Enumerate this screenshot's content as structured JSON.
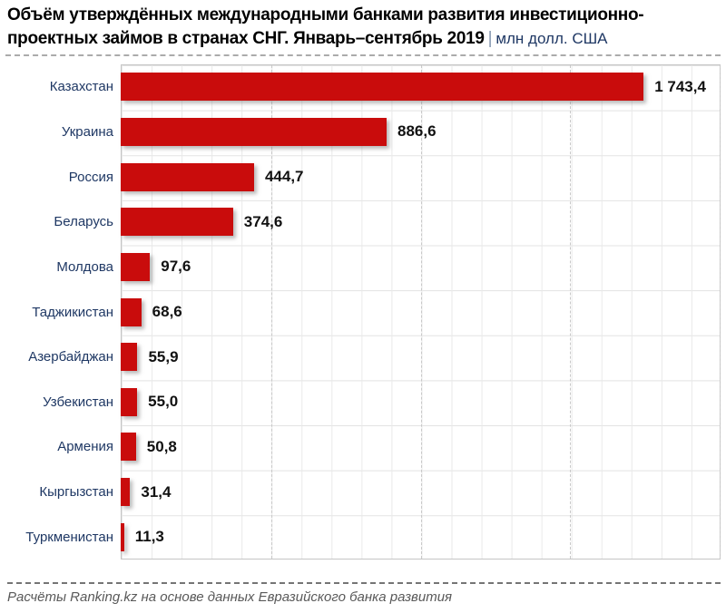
{
  "title": {
    "line1": "Объём утверждённых международными банками развития инвестиционно-",
    "line2": "проектных займов в странах СНГ. Январь–сентябрь 2019",
    "pipe": "|",
    "unit": "млн долл. США"
  },
  "chart_data": {
    "type": "bar",
    "orientation": "horizontal",
    "title": "Объём утверждённых международными банками развития инвестиционно-проектных займов в странах СНГ. Январь–сентябрь 2019",
    "unit": "млн долл. США",
    "categories": [
      "Казахстан",
      "Украина",
      "Россия",
      "Беларусь",
      "Молдова",
      "Таджикистан",
      "Азербайджан",
      "Узбекистан",
      "Армения",
      "Кыргызстан",
      "Туркменистан"
    ],
    "values": [
      1743.4,
      886.6,
      444.7,
      374.6,
      97.6,
      68.6,
      55.9,
      55.0,
      50.8,
      31.4,
      11.3
    ],
    "value_labels": [
      "1 743,4",
      "886,6",
      "444,7",
      "374,6",
      "97,6",
      "68,6",
      "55,9",
      "55,0",
      "50,8",
      "31,4",
      "11,3"
    ],
    "xlim": [
      0,
      2000
    ],
    "minor_grid_step": 100,
    "major_grid_steps": [
      500,
      1000,
      1500,
      2000
    ],
    "grid": "on",
    "legend": "none",
    "bar_color": "#C90C0C",
    "category_label_color": "#1F3864",
    "value_label_color": "#111111"
  },
  "footer": {
    "source": "Расчёты Ranking.kz на основе данных Евразийского банка развития"
  }
}
